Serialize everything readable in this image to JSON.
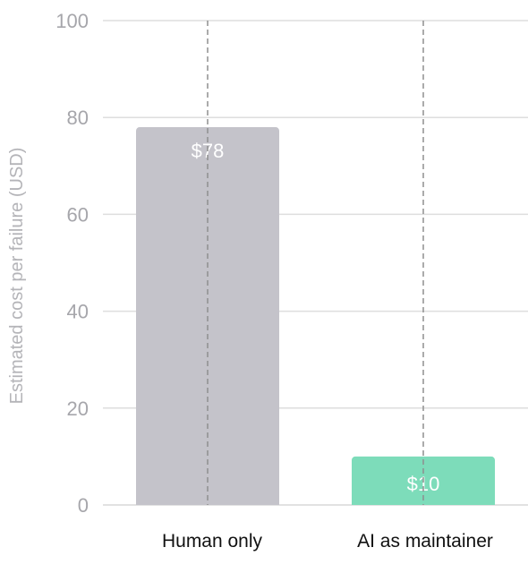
{
  "chart_data": {
    "type": "bar",
    "title": "",
    "xlabel": "",
    "ylabel": "Estimated cost per failure (USD)",
    "ylim": [
      0,
      100
    ],
    "yticks": [
      0,
      20,
      40,
      60,
      80,
      100
    ],
    "grid": true,
    "categories": [
      "Human only",
      "AI as maintainer"
    ],
    "values": [
      78,
      10
    ],
    "data_labels": [
      "$78",
      "$10"
    ],
    "colors": [
      "#c4c3ca",
      "#7ddcba"
    ],
    "grid_color": "#dedede",
    "divider_color": "#8f8f8f"
  }
}
